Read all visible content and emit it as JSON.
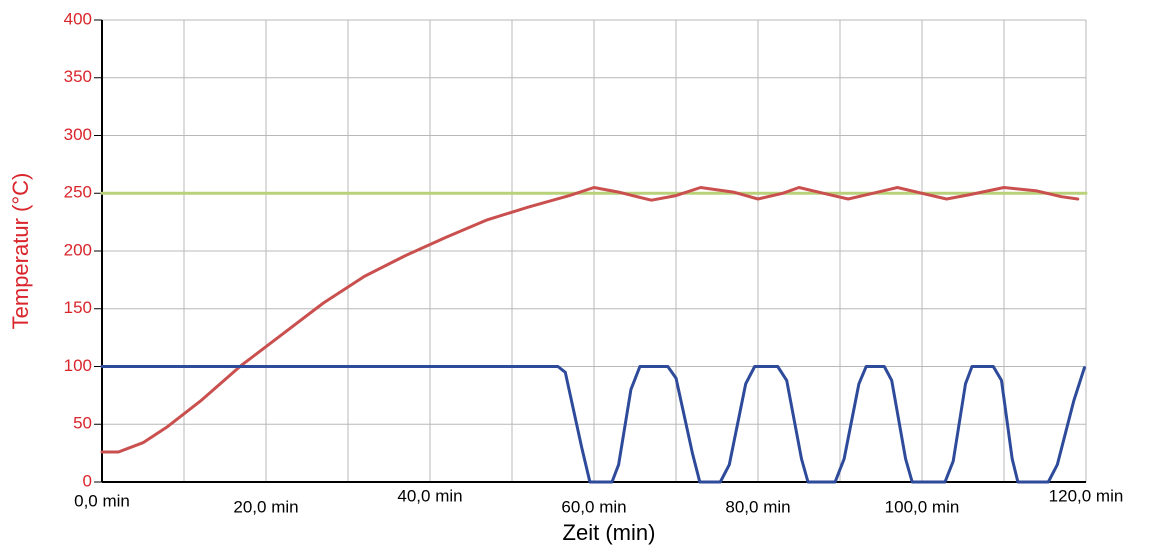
{
  "chart_data": {
    "type": "line",
    "xlabel": "Zeit (min)",
    "ylabel": "Temperatur (°C)",
    "xlim": [
      0,
      120
    ],
    "ylim": [
      0,
      400
    ],
    "xticks": [
      {
        "value": 0,
        "label": "0,0 min"
      },
      {
        "value": 20,
        "label": "20,0 min"
      },
      {
        "value": 40,
        "label": "40,0 min"
      },
      {
        "value": 60,
        "label": "60,0 min"
      },
      {
        "value": 80,
        "label": "80,0 min"
      },
      {
        "value": 100,
        "label": "100,0 min"
      },
      {
        "value": 120,
        "label": "120,0 min"
      }
    ],
    "x_minor_ticks": [
      10,
      30,
      50,
      70,
      90,
      110
    ],
    "yticks": [
      0,
      50,
      100,
      150,
      200,
      250,
      300,
      350,
      400
    ],
    "grid": true,
    "axis_label_color": "#d9252b",
    "series": [
      {
        "color": "#b9d27a",
        "x": [
          0,
          120
        ],
        "values": [
          250,
          250
        ]
      },
      {
        "color": "#c9504f",
        "x": [
          0,
          2,
          5,
          8,
          12,
          17,
          22,
          27,
          32,
          37,
          42,
          47,
          52,
          57,
          60,
          63,
          67,
          70,
          73,
          77,
          80,
          83,
          85,
          88,
          91,
          94,
          97,
          100,
          103,
          106,
          110,
          114,
          117,
          119
        ],
        "values": [
          26,
          26,
          34,
          48,
          70,
          101,
          128,
          155,
          178,
          196,
          212,
          227,
          238,
          248,
          255,
          251,
          244,
          248,
          255,
          251,
          245,
          250,
          255,
          250,
          245,
          250,
          255,
          250,
          245,
          249,
          255,
          252,
          247,
          245
        ]
      },
      {
        "color": "#2e4a9a",
        "x": [
          0,
          55.6,
          56.5,
          58.5,
          59.5,
          62.2,
          63,
          64.5,
          65.6,
          69,
          70,
          72,
          72.9,
          75.4,
          76.5,
          78.5,
          79.6,
          82.4,
          83.5,
          85.3,
          86.1,
          89.4,
          90.5,
          92.3,
          93.2,
          95.4,
          96.3,
          98,
          98.8,
          102.8,
          103.8,
          105.3,
          106.1,
          108.7,
          109.7,
          111,
          111.7,
          115.4,
          116.5,
          118.5,
          119.8
        ],
        "values": [
          100,
          100,
          95,
          30,
          0,
          0,
          15,
          80,
          100,
          100,
          90,
          25,
          0,
          0,
          15,
          85,
          100,
          100,
          88,
          20,
          0,
          0,
          20,
          85,
          100,
          100,
          88,
          20,
          0,
          0,
          18,
          85,
          100,
          100,
          88,
          20,
          0,
          0,
          15,
          70,
          99
        ]
      }
    ]
  }
}
